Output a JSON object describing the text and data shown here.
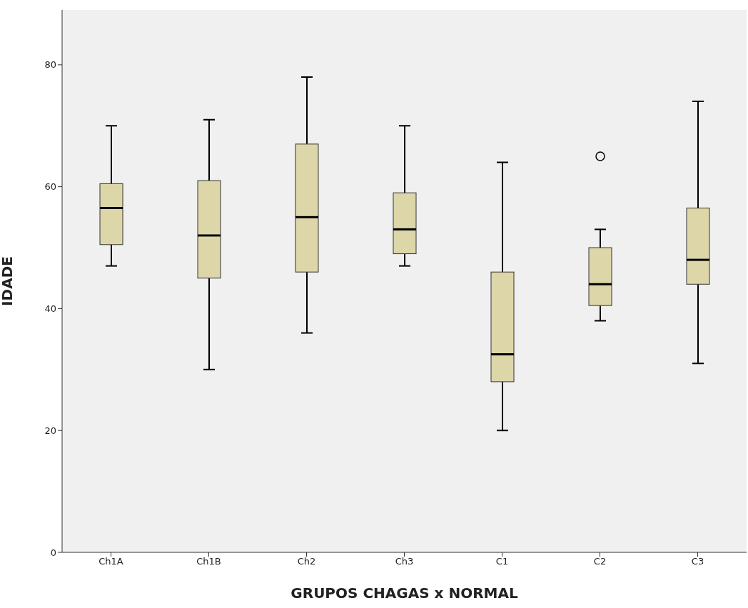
{
  "chart_data": {
    "type": "box",
    "xlabel": "GRUPOS CHAGAS x NORMAL",
    "ylabel": "IDADE",
    "categories": [
      "Ch1A",
      "Ch1B",
      "Ch2",
      "Ch3",
      "C1",
      "C2",
      "C3"
    ],
    "color": "#ddd6a8",
    "ylim": [
      0,
      89
    ],
    "yticks": [
      0,
      20,
      40,
      60,
      80
    ],
    "boxes": [
      {
        "low": 47,
        "q1": 50.5,
        "median": 56.5,
        "q3": 60.5,
        "high": 70
      },
      {
        "low": 30,
        "q1": 45,
        "median": 52,
        "q3": 61,
        "high": 71
      },
      {
        "low": 36,
        "q1": 46,
        "median": 55,
        "q3": 67,
        "high": 78
      },
      {
        "low": 47,
        "q1": 49,
        "median": 53,
        "q3": 59,
        "high": 70
      },
      {
        "low": 20,
        "q1": 28,
        "median": 32.5,
        "q3": 46,
        "high": 64
      },
      {
        "low": 38,
        "q1": 40.5,
        "median": 44,
        "q3": 50,
        "high": 53,
        "outliers": [
          65
        ]
      },
      {
        "low": 31,
        "q1": 44,
        "median": 48,
        "q3": 56.5,
        "high": 74
      }
    ]
  }
}
